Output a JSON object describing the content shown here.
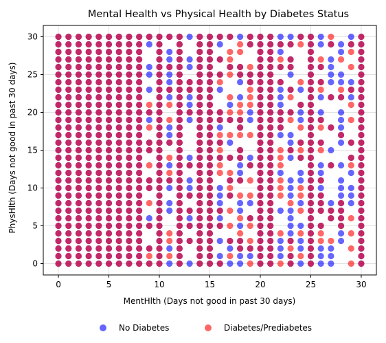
{
  "chart_data": {
    "type": "scatter",
    "title": "Mental Health vs Physical Health by Diabetes Status",
    "xlabel": "MentHlth (Days not good in past 30 days)",
    "ylabel": "PhysHlth (Days not good in past 30 days)",
    "xlim": [
      -1.5,
      31.5
    ],
    "ylim": [
      -1.5,
      31.5
    ],
    "xticks": [
      0,
      5,
      10,
      15,
      20,
      25,
      30
    ],
    "yticks": [
      0,
      5,
      10,
      15,
      20,
      25,
      30
    ],
    "grid": true,
    "legend": {
      "placement": "bottom-center",
      "entries": [
        "No Diabetes",
        "Diabetes/Prediabetes"
      ]
    },
    "series": [
      {
        "name": "No Diabetes",
        "color": "#0000ff",
        "alpha": 0.6,
        "grid_range": [
          0,
          30
        ],
        "sparse_x": [
          9,
          11,
          13,
          16,
          17,
          18,
          19,
          22,
          23,
          24,
          26,
          27,
          28,
          29
        ],
        "keep_fraction": 0.55
      },
      {
        "name": "Diabetes/Prediabetes",
        "color": "#ff0000",
        "alpha": 0.6,
        "grid_range": [
          0,
          30
        ],
        "sparse_x": [
          9,
          11,
          13,
          16,
          17,
          18,
          19,
          22,
          23,
          24,
          26,
          27,
          28,
          29
        ],
        "keep_fraction": 0.4
      }
    ]
  }
}
